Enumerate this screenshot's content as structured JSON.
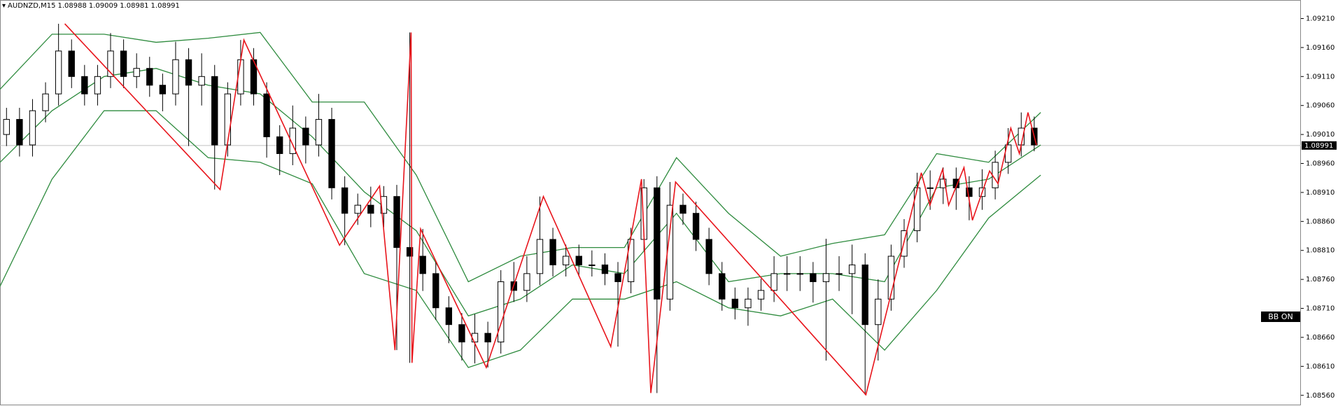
{
  "chart_data": {
    "type": "candlestick",
    "symbol": "AUDNZD,M15",
    "header_ohlc": [
      1.08988,
      1.09009,
      1.08981,
      1.08991
    ],
    "current_price": 1.08991,
    "xlim": [
      0,
      100
    ],
    "ylim": [
      1.08544,
      1.09242
    ],
    "yticks": [
      {
        "value": 1.0921,
        "label": "1.09210"
      },
      {
        "value": 1.0916,
        "label": "1.09160"
      },
      {
        "value": 1.0911,
        "label": "1.09110"
      },
      {
        "value": 1.0906,
        "label": "1.09060"
      },
      {
        "value": 1.0901,
        "label": "1.09010"
      },
      {
        "value": 1.0896,
        "label": "1.08960"
      },
      {
        "value": 1.0891,
        "label": "1.08910"
      },
      {
        "value": 1.0886,
        "label": "1.08860"
      },
      {
        "value": 1.0881,
        "label": "1.08810"
      },
      {
        "value": 1.0876,
        "label": "1.08760"
      },
      {
        "value": 1.0871,
        "label": "1.08710"
      },
      {
        "value": 1.0866,
        "label": "1.08660"
      },
      {
        "value": 1.0861,
        "label": "1.08610"
      },
      {
        "value": 1.0856,
        "label": "1.08560"
      }
    ],
    "ohlc": [
      [
        1.0901,
        1.09056,
        1.0899,
        1.09036
      ],
      [
        1.09036,
        1.09056,
        1.08972,
        1.08992
      ],
      [
        1.08992,
        1.09071,
        1.08972,
        1.09051
      ],
      [
        1.09051,
        1.091,
        1.09031,
        1.0908
      ],
      [
        1.0908,
        1.09201,
        1.0906,
        1.09154
      ],
      [
        1.09154,
        1.09174,
        1.0909,
        1.0911
      ],
      [
        1.0911,
        1.0913,
        1.0906,
        1.0908
      ],
      [
        1.0908,
        1.0913,
        1.0906,
        1.0911
      ],
      [
        1.0911,
        1.09185,
        1.0909,
        1.09154
      ],
      [
        1.09154,
        1.09174,
        1.0909,
        1.0911
      ],
      [
        1.0911,
        1.0915,
        1.0909,
        1.09124
      ],
      [
        1.09124,
        1.09144,
        1.09075,
        1.09095
      ],
      [
        1.09095,
        1.09115,
        1.0905,
        1.0908
      ],
      [
        1.0908,
        1.0917,
        1.0906,
        1.09139
      ],
      [
        1.09139,
        1.09159,
        1.0899,
        1.09095
      ],
      [
        1.09095,
        1.0915,
        1.0906,
        1.0911
      ],
      [
        1.0911,
        1.0913,
        1.08915,
        1.08992
      ],
      [
        1.08992,
        1.091,
        1.08972,
        1.0908
      ],
      [
        1.0908,
        1.09173,
        1.0906,
        1.09139
      ],
      [
        1.09139,
        1.09159,
        1.0906,
        1.0908
      ],
      [
        1.0908,
        1.091,
        1.0897,
        1.09006
      ],
      [
        1.09006,
        1.09026,
        1.0894,
        1.08977
      ],
      [
        1.08977,
        1.0906,
        1.08957,
        1.09021
      ],
      [
        1.09021,
        1.09041,
        1.0896,
        1.08992
      ],
      [
        1.08992,
        1.0908,
        1.08972,
        1.09036
      ],
      [
        1.09036,
        1.09056,
        1.08898,
        1.08918
      ],
      [
        1.08918,
        1.08938,
        1.08819,
        1.08874
      ],
      [
        1.08874,
        1.08908,
        1.08854,
        1.08888
      ],
      [
        1.08888,
        1.0892,
        1.0885,
        1.08874
      ],
      [
        1.08874,
        1.08921,
        1.0885,
        1.08903
      ],
      [
        1.08903,
        1.08923,
        1.08638,
        1.08815
      ],
      [
        1.08815,
        1.09186,
        1.08616,
        1.088
      ],
      [
        1.088,
        1.08847,
        1.0874,
        1.0877
      ],
      [
        1.0877,
        1.0879,
        1.0869,
        1.08711
      ],
      [
        1.08711,
        1.08731,
        1.0865,
        1.08682
      ],
      [
        1.08682,
        1.08702,
        1.0862,
        1.08652
      ],
      [
        1.08652,
        1.087,
        1.08615,
        1.08667
      ],
      [
        1.08667,
        1.08687,
        1.08608,
        1.08652
      ],
      [
        1.08652,
        1.08776,
        1.08632,
        1.08756
      ],
      [
        1.08756,
        1.0879,
        1.08721,
        1.08741
      ],
      [
        1.08741,
        1.088,
        1.08721,
        1.0877
      ],
      [
        1.0877,
        1.08903,
        1.0875,
        1.08829
      ],
      [
        1.08829,
        1.08849,
        1.08765,
        1.08785
      ],
      [
        1.08785,
        1.0882,
        1.08765,
        1.088
      ],
      [
        1.088,
        1.0882,
        1.08765,
        1.08785
      ],
      [
        1.08785,
        1.0881,
        1.08765,
        1.08785
      ],
      [
        1.08785,
        1.08805,
        1.0875,
        1.0877
      ],
      [
        1.0877,
        1.0879,
        1.08644,
        1.08756
      ],
      [
        1.08756,
        1.08849,
        1.08736,
        1.08829
      ],
      [
        1.08829,
        1.08933,
        1.08809,
        1.08918
      ],
      [
        1.08918,
        1.08938,
        1.08564,
        1.08726
      ],
      [
        1.08726,
        1.08928,
        1.08706,
        1.08888
      ],
      [
        1.08888,
        1.08908,
        1.08854,
        1.08874
      ],
      [
        1.08874,
        1.08894,
        1.08809,
        1.08829
      ],
      [
        1.08829,
        1.08849,
        1.0875,
        1.0877
      ],
      [
        1.0877,
        1.0879,
        1.08706,
        1.08726
      ],
      [
        1.08726,
        1.08746,
        1.08691,
        1.08711
      ],
      [
        1.08711,
        1.08746,
        1.0868,
        1.08726
      ],
      [
        1.08726,
        1.08761,
        1.08706,
        1.08741
      ],
      [
        1.08741,
        1.088,
        1.08721,
        1.0877
      ],
      [
        1.0877,
        1.088,
        1.0874,
        1.0877
      ],
      [
        1.0877,
        1.088,
        1.0874,
        1.0877
      ],
      [
        1.0877,
        1.0879,
        1.0872,
        1.08756
      ],
      [
        1.08756,
        1.0883,
        1.0862,
        1.0877
      ],
      [
        1.0877,
        1.088,
        1.0874,
        1.0877
      ],
      [
        1.0877,
        1.0882,
        1.087,
        1.08785
      ],
      [
        1.08785,
        1.08805,
        1.08561,
        1.08682
      ],
      [
        1.08682,
        1.0876,
        1.0862,
        1.08726
      ],
      [
        1.08726,
        1.0882,
        1.08706,
        1.088
      ],
      [
        1.088,
        1.08864,
        1.0878,
        1.08844
      ],
      [
        1.08844,
        1.08944,
        1.08824,
        1.08918
      ],
      [
        1.08918,
        1.08948,
        1.0888,
        1.08918
      ],
      [
        1.08918,
        1.08953,
        1.0889,
        1.08933
      ],
      [
        1.08933,
        1.08953,
        1.0888,
        1.08918
      ],
      [
        1.08918,
        1.08938,
        1.08862,
        1.08903
      ],
      [
        1.08903,
        1.0895,
        1.0888,
        1.08918
      ],
      [
        1.08918,
        1.08982,
        1.08898,
        1.08962
      ],
      [
        1.08962,
        1.09021,
        1.08942,
        1.08992
      ],
      [
        1.08992,
        1.09048,
        1.08972,
        1.09021
      ],
      [
        1.09021,
        1.09041,
        1.08981,
        1.08992
      ]
    ],
    "zigzag": {
      "color": "#e8141b",
      "x": [
        4.98,
        16.92,
        18.75,
        26.1,
        29.18,
        30.36,
        31.6,
        31.67,
        32.33,
        37.38,
        41.77,
        46.95,
        49.31,
        50.03,
        51.93,
        66.56,
        70.82,
        71.48,
        72.46,
        72.92,
        74.1,
        74.75,
        76.07,
        76.72,
        77.7,
        78.36,
        79.02,
        79.67
      ],
      "values": [
        1.09201,
        1.08915,
        1.09173,
        1.08819,
        1.08921,
        1.08638,
        1.09186,
        1.08616,
        1.08847,
        1.08608,
        1.08903,
        1.08644,
        1.08933,
        1.08564,
        1.08928,
        1.08561,
        1.08944,
        1.08888,
        1.0895,
        1.08888,
        1.08953,
        1.08862,
        1.08947,
        1.08925,
        1.09021,
        1.08977,
        1.09048,
        1.08992
      ]
    },
    "band_x": [
      0,
      4,
      8,
      12,
      16,
      20,
      24,
      28,
      32,
      36,
      40,
      44,
      48,
      52,
      56,
      60,
      64,
      68,
      72,
      76,
      80
    ],
    "bands": [
      {
        "color": "#2e8b3e",
        "values": [
          1.09088,
          1.09183,
          1.09183,
          1.09169,
          1.09176,
          1.09186,
          1.09066,
          1.09066,
          1.0894,
          1.08756,
          1.088,
          1.08815,
          1.08815,
          1.0897,
          1.08874,
          1.088,
          1.08822,
          1.08837,
          1.08977,
          1.08962,
          1.09048
        ]
      },
      {
        "color": "#2e8b3e",
        "values": [
          1.08962,
          1.09051,
          1.0911,
          1.09124,
          1.09095,
          1.0908,
          1.09006,
          1.08911,
          1.08844,
          1.08697,
          1.08726,
          1.08785,
          1.0877,
          1.08874,
          1.08756,
          1.0877,
          1.0877,
          1.08756,
          1.08918,
          1.08933,
          1.08992
        ]
      },
      {
        "color": "#2e8b3e",
        "values": [
          1.08748,
          1.08933,
          1.09051,
          1.09051,
          1.0897,
          1.08962,
          1.08925,
          1.0877,
          1.08741,
          1.08608,
          1.08638,
          1.08726,
          1.08726,
          1.08756,
          1.08711,
          1.08697,
          1.08726,
          1.08638,
          1.08741,
          1.08866,
          1.0894
        ]
      }
    ]
  },
  "button": {
    "label": "BB ON"
  }
}
